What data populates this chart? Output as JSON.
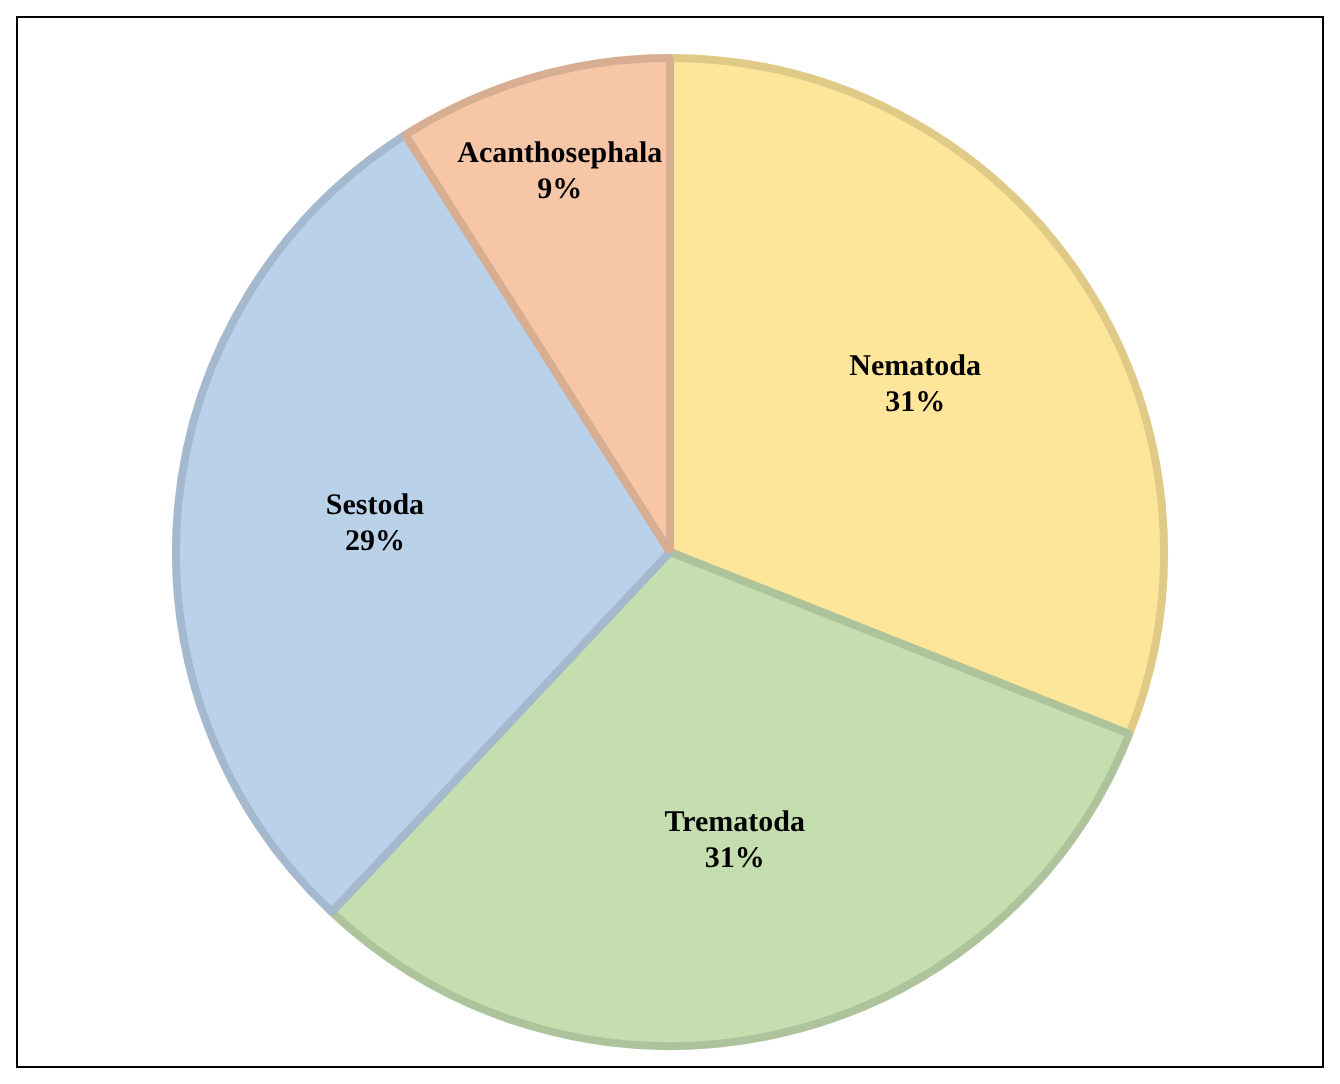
{
  "chart_data": {
    "type": "pie",
    "categories": [
      "Nematoda",
      "Trematoda",
      "Sestoda",
      "Acanthosephala"
    ],
    "values": [
      31,
      31,
      29,
      9
    ],
    "value_labels": [
      "31%",
      "31%",
      "29%",
      "9%"
    ],
    "colors": [
      "#fde699",
      "#c5deb0",
      "#bad1ea",
      "#f6c6a7"
    ],
    "legend": false
  }
}
